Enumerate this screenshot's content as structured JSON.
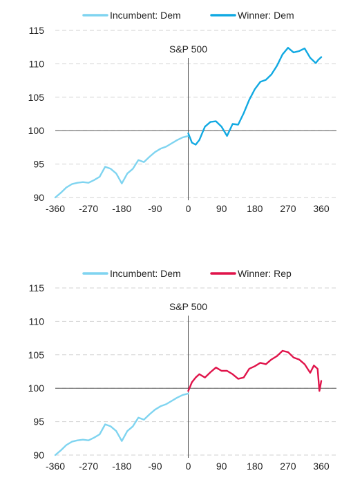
{
  "colors": {
    "incumbent_dem": "#7fd4f0",
    "winner_dem": "#11a9e2",
    "winner_rep": "#e0134a",
    "grid": "#d2d2d2",
    "axis": "#555555"
  },
  "chart_data": [
    {
      "type": "line",
      "title": "S&P 500",
      "xlabel": "",
      "ylabel": "",
      "xlim": [
        -360,
        360
      ],
      "ylim": [
        90,
        115
      ],
      "x_ticks": [
        "-360",
        "-270",
        "-180",
        "-90",
        "0",
        "90",
        "180",
        "270",
        "360"
      ],
      "y_ticks": [
        "115",
        "110",
        "105",
        "100",
        "95",
        "90"
      ],
      "grid": "horizontal dashed",
      "legend_position": "top",
      "series": [
        {
          "name": "Incumbent: Dem",
          "color": "#7fd4f0",
          "x": [
            -360,
            -345,
            -330,
            -315,
            -300,
            -285,
            -270,
            -255,
            -240,
            -225,
            -210,
            -195,
            -185,
            -180,
            -165,
            -150,
            -135,
            -120,
            -105,
            -90,
            -75,
            -60,
            -45,
            -30,
            -15,
            0
          ],
          "y": [
            90.0,
            90.7,
            91.5,
            92.0,
            92.2,
            92.3,
            92.2,
            92.6,
            93.1,
            94.6,
            94.3,
            93.6,
            92.6,
            92.1,
            93.6,
            94.3,
            95.6,
            95.3,
            96.1,
            96.8,
            97.3,
            97.6,
            98.1,
            98.6,
            99.0,
            99.2
          ]
        },
        {
          "name": "Winner: Dem",
          "color": "#11a9e2",
          "x": [
            0,
            10,
            20,
            30,
            45,
            60,
            75,
            90,
            105,
            120,
            135,
            150,
            165,
            180,
            195,
            210,
            225,
            240,
            255,
            270,
            285,
            300,
            315,
            330,
            345,
            352,
            360
          ],
          "y": [
            99.6,
            98.2,
            97.9,
            98.6,
            100.6,
            101.3,
            101.4,
            100.6,
            99.2,
            101.0,
            100.9,
            102.6,
            104.6,
            106.2,
            107.3,
            107.6,
            108.4,
            109.7,
            111.4,
            112.4,
            111.7,
            111.9,
            112.3,
            110.9,
            110.1,
            110.6,
            111.0
          ]
        }
      ]
    },
    {
      "type": "line",
      "title": "S&P 500",
      "xlabel": "",
      "ylabel": "",
      "xlim": [
        -360,
        360
      ],
      "ylim": [
        90,
        115
      ],
      "x_ticks": [
        "-360",
        "-270",
        "-180",
        "-90",
        "0",
        "90",
        "180",
        "270",
        "360"
      ],
      "y_ticks": [
        "115",
        "110",
        "105",
        "100",
        "95",
        "90"
      ],
      "grid": "horizontal dashed",
      "legend_position": "top",
      "series": [
        {
          "name": "Incumbent: Dem",
          "color": "#7fd4f0",
          "x": [
            -360,
            -345,
            -330,
            -315,
            -300,
            -285,
            -270,
            -255,
            -240,
            -225,
            -210,
            -195,
            -185,
            -180,
            -165,
            -150,
            -135,
            -120,
            -105,
            -90,
            -75,
            -60,
            -45,
            -30,
            -15,
            0
          ],
          "y": [
            90.0,
            90.7,
            91.5,
            92.0,
            92.2,
            92.3,
            92.2,
            92.6,
            93.1,
            94.6,
            94.3,
            93.6,
            92.6,
            92.1,
            93.6,
            94.3,
            95.6,
            95.3,
            96.1,
            96.8,
            97.3,
            97.6,
            98.1,
            98.6,
            99.0,
            99.2
          ]
        },
        {
          "name": "Winner: Rep",
          "color": "#e0134a",
          "x": [
            0,
            10,
            20,
            30,
            45,
            60,
            75,
            90,
            105,
            120,
            135,
            150,
            165,
            180,
            195,
            210,
            225,
            240,
            255,
            270,
            285,
            300,
            315,
            330,
            340,
            350,
            355,
            360
          ],
          "y": [
            99.6,
            100.9,
            101.6,
            102.1,
            101.6,
            102.4,
            103.1,
            102.6,
            102.6,
            102.1,
            101.4,
            101.6,
            102.9,
            103.3,
            103.8,
            103.6,
            104.3,
            104.8,
            105.6,
            105.4,
            104.6,
            104.3,
            103.6,
            102.3,
            103.4,
            102.9,
            99.6,
            101.1
          ]
        }
      ]
    }
  ]
}
